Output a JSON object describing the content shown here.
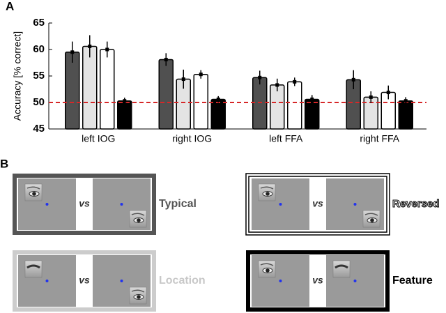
{
  "chart_data": {
    "type": "bar",
    "panel_label": "A",
    "ylabel": "Accuracy [% correct]",
    "categories": [
      "left IOG",
      "right IOG",
      "left FFA",
      "right FFA"
    ],
    "series": [
      {
        "name": "Typical",
        "color": "#505050",
        "values": [
          59.5,
          58.1,
          54.7,
          54.3
        ],
        "errors": [
          2.0,
          1.2,
          1.3,
          1.8
        ]
      },
      {
        "name": "Reversed",
        "color": "#e4e4e4",
        "values": [
          60.6,
          54.4,
          53.3,
          51.0
        ],
        "errors": [
          2.1,
          1.8,
          1.2,
          1.1
        ]
      },
      {
        "name": "Location",
        "color": "#ffffff",
        "values": [
          60.0,
          55.3,
          53.9,
          51.9
        ],
        "errors": [
          1.5,
          0.8,
          0.8,
          1.3
        ]
      },
      {
        "name": "Feature",
        "color": "#000000",
        "values": [
          50.3,
          50.6,
          50.6,
          50.3
        ],
        "errors": [
          0.6,
          0.6,
          0.8,
          0.7
        ]
      }
    ],
    "ylim": [
      45,
      65
    ],
    "yticks": [
      45,
      50,
      55,
      60,
      65
    ],
    "reference_line": {
      "value": 50,
      "color": "#d62728"
    }
  },
  "panel_b": {
    "panel_label": "B",
    "vs": "vs"
  }
}
